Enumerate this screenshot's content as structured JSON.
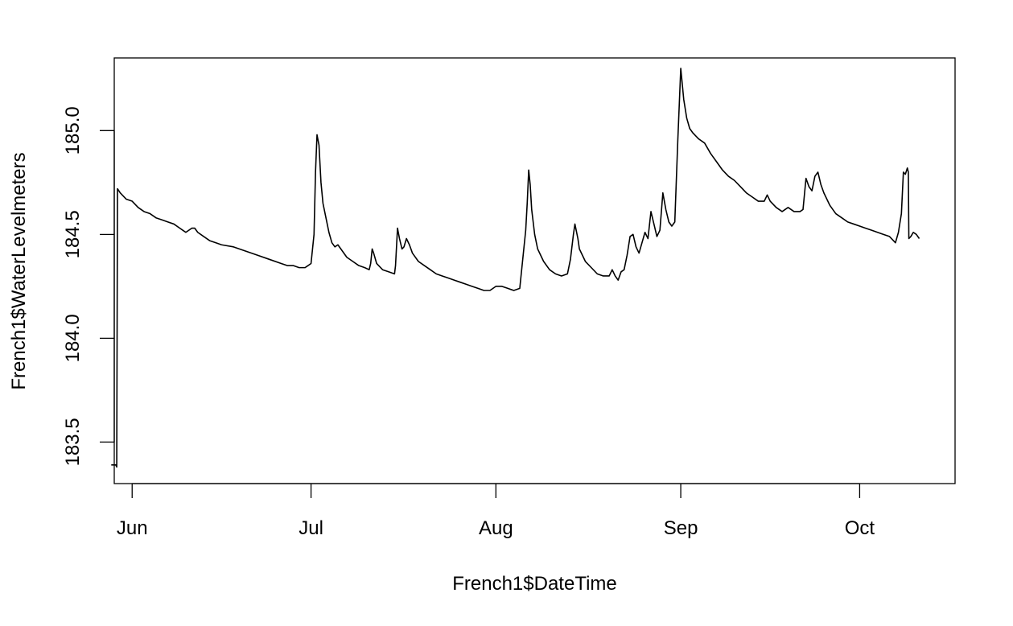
{
  "chart_data": {
    "type": "line",
    "title": "",
    "xlabel": "French1$DateTime",
    "ylabel": "French1$WaterLevelmeters",
    "xlim": [
      "2015-05-29",
      "2015-10-17"
    ],
    "ylim": [
      183.3,
      185.35
    ],
    "x_ticks": [
      "2015-06-01",
      "2015-07-01",
      "2015-08-01",
      "2015-09-01",
      "2015-10-01"
    ],
    "x_tick_labels": [
      "Jun",
      "Jul",
      "Aug",
      "Sep",
      "Oct"
    ],
    "y_ticks": [
      183.5,
      184.0,
      184.5,
      185.0
    ],
    "y_tick_labels": [
      "183.5",
      "184.0",
      "184.5",
      "185.0"
    ],
    "grid": false,
    "series": [
      {
        "color": "#000000",
        "points": [
          [
            "2015-05-28T12:00",
            183.39
          ],
          [
            "2015-05-29T06:00",
            183.39
          ],
          [
            "2015-05-29T10:00",
            183.38
          ],
          [
            "2015-05-29T13:00",
            184.72
          ],
          [
            "2015-05-30",
            184.7
          ],
          [
            "2015-05-31",
            184.67
          ],
          [
            "2015-06-01",
            184.66
          ],
          [
            "2015-06-02",
            184.63
          ],
          [
            "2015-06-03",
            184.61
          ],
          [
            "2015-06-04",
            184.6
          ],
          [
            "2015-06-05",
            184.58
          ],
          [
            "2015-06-06",
            184.57
          ],
          [
            "2015-06-07",
            184.56
          ],
          [
            "2015-06-08",
            184.55
          ],
          [
            "2015-06-09",
            184.53
          ],
          [
            "2015-06-09T12:00",
            184.52
          ],
          [
            "2015-06-10",
            184.51
          ],
          [
            "2015-06-11",
            184.53
          ],
          [
            "2015-06-11T12:00",
            184.53
          ],
          [
            "2015-06-12",
            184.51
          ],
          [
            "2015-06-13",
            184.49
          ],
          [
            "2015-06-14",
            184.47
          ],
          [
            "2015-06-15",
            184.46
          ],
          [
            "2015-06-16",
            184.45
          ],
          [
            "2015-06-18",
            184.44
          ],
          [
            "2015-06-20",
            184.42
          ],
          [
            "2015-06-22",
            184.4
          ],
          [
            "2015-06-24",
            184.38
          ],
          [
            "2015-06-26",
            184.36
          ],
          [
            "2015-06-27",
            184.35
          ],
          [
            "2015-06-28",
            184.35
          ],
          [
            "2015-06-29",
            184.34
          ],
          [
            "2015-06-30",
            184.34
          ],
          [
            "2015-07-01",
            184.36
          ],
          [
            "2015-07-01T12:00",
            184.5
          ],
          [
            "2015-07-01T18:00",
            184.8
          ],
          [
            "2015-07-02",
            184.98
          ],
          [
            "2015-07-02T08:00",
            184.93
          ],
          [
            "2015-07-02T16:00",
            184.75
          ],
          [
            "2015-07-03",
            184.65
          ],
          [
            "2015-07-03T12:00",
            184.58
          ],
          [
            "2015-07-04",
            184.51
          ],
          [
            "2015-07-04T12:00",
            184.46
          ],
          [
            "2015-07-05",
            184.44
          ],
          [
            "2015-07-05T12:00",
            184.45
          ],
          [
            "2015-07-06",
            184.43
          ],
          [
            "2015-07-07",
            184.39
          ],
          [
            "2015-07-08",
            184.37
          ],
          [
            "2015-07-09",
            184.35
          ],
          [
            "2015-07-10",
            184.34
          ],
          [
            "2015-07-10T18:00",
            184.33
          ],
          [
            "2015-07-11",
            184.36
          ],
          [
            "2015-07-11T06:00",
            184.43
          ],
          [
            "2015-07-11T12:00",
            184.41
          ],
          [
            "2015-07-12",
            184.36
          ],
          [
            "2015-07-13",
            184.33
          ],
          [
            "2015-07-14",
            184.32
          ],
          [
            "2015-07-15",
            184.31
          ],
          [
            "2015-07-15T04:00",
            184.35
          ],
          [
            "2015-07-15T12:00",
            184.53
          ],
          [
            "2015-07-15T20:00",
            184.48
          ],
          [
            "2015-07-16T06:00",
            184.43
          ],
          [
            "2015-07-16T14:00",
            184.44
          ],
          [
            "2015-07-17",
            184.48
          ],
          [
            "2015-07-17T12:00",
            184.45
          ],
          [
            "2015-07-18",
            184.41
          ],
          [
            "2015-07-19",
            184.37
          ],
          [
            "2015-07-20",
            184.35
          ],
          [
            "2015-07-21",
            184.33
          ],
          [
            "2015-07-22",
            184.31
          ],
          [
            "2015-07-23",
            184.3
          ],
          [
            "2015-07-24",
            184.29
          ],
          [
            "2015-07-25",
            184.28
          ],
          [
            "2015-07-26",
            184.27
          ],
          [
            "2015-07-27",
            184.26
          ],
          [
            "2015-07-28",
            184.25
          ],
          [
            "2015-07-29",
            184.24
          ],
          [
            "2015-07-30",
            184.23
          ],
          [
            "2015-07-31",
            184.23
          ],
          [
            "2015-08-01",
            184.25
          ],
          [
            "2015-08-02",
            184.25
          ],
          [
            "2015-08-03",
            184.24
          ],
          [
            "2015-08-04",
            184.23
          ],
          [
            "2015-08-05",
            184.24
          ],
          [
            "2015-08-05T12:00",
            184.38
          ],
          [
            "2015-08-06",
            184.52
          ],
          [
            "2015-08-06T06:00",
            184.65
          ],
          [
            "2015-08-06T12:00",
            184.81
          ],
          [
            "2015-08-06T18:00",
            184.74
          ],
          [
            "2015-08-07",
            184.62
          ],
          [
            "2015-08-07T12:00",
            184.5
          ],
          [
            "2015-08-08",
            184.43
          ],
          [
            "2015-08-09",
            184.37
          ],
          [
            "2015-08-10",
            184.33
          ],
          [
            "2015-08-11",
            184.31
          ],
          [
            "2015-08-12",
            184.3
          ],
          [
            "2015-08-13",
            184.31
          ],
          [
            "2015-08-13T12:00",
            184.38
          ],
          [
            "2015-08-14",
            184.5
          ],
          [
            "2015-08-14T06:00",
            184.55
          ],
          [
            "2015-08-14T18:00",
            184.48
          ],
          [
            "2015-08-15",
            184.43
          ],
          [
            "2015-08-16",
            184.37
          ],
          [
            "2015-08-17",
            184.34
          ],
          [
            "2015-08-18",
            184.31
          ],
          [
            "2015-08-19",
            184.3
          ],
          [
            "2015-08-20",
            184.3
          ],
          [
            "2015-08-20T12:00",
            184.33
          ],
          [
            "2015-08-21",
            184.3
          ],
          [
            "2015-08-21T12:00",
            184.28
          ],
          [
            "2015-08-22",
            184.32
          ],
          [
            "2015-08-22T12:00",
            184.33
          ],
          [
            "2015-08-23",
            184.4
          ],
          [
            "2015-08-23T12:00",
            184.49
          ],
          [
            "2015-08-24",
            184.5
          ],
          [
            "2015-08-24T12:00",
            184.44
          ],
          [
            "2015-08-25",
            184.41
          ],
          [
            "2015-08-25T12:00",
            184.46
          ],
          [
            "2015-08-26",
            184.51
          ],
          [
            "2015-08-26T12:00",
            184.48
          ],
          [
            "2015-08-27",
            184.61
          ],
          [
            "2015-08-27T12:00",
            184.55
          ],
          [
            "2015-08-28",
            184.49
          ],
          [
            "2015-08-28T12:00",
            184.52
          ],
          [
            "2015-08-29",
            184.7
          ],
          [
            "2015-08-29T12:00",
            184.62
          ],
          [
            "2015-08-30",
            184.56
          ],
          [
            "2015-08-30T12:00",
            184.54
          ],
          [
            "2015-08-31",
            184.56
          ],
          [
            "2015-08-31T12:00",
            184.95
          ],
          [
            "2015-09-01",
            185.3
          ],
          [
            "2015-09-01T12:00",
            185.15
          ],
          [
            "2015-09-02",
            185.06
          ],
          [
            "2015-09-02T12:00",
            185.01
          ],
          [
            "2015-09-03",
            184.99
          ],
          [
            "2015-09-04",
            184.96
          ],
          [
            "2015-09-05",
            184.94
          ],
          [
            "2015-09-06",
            184.89
          ],
          [
            "2015-09-07",
            184.85
          ],
          [
            "2015-09-08",
            184.81
          ],
          [
            "2015-09-09",
            184.78
          ],
          [
            "2015-09-10",
            184.76
          ],
          [
            "2015-09-11",
            184.73
          ],
          [
            "2015-09-12",
            184.7
          ],
          [
            "2015-09-13",
            184.68
          ],
          [
            "2015-09-14",
            184.66
          ],
          [
            "2015-09-15",
            184.66
          ],
          [
            "2015-09-15T12:00",
            184.69
          ],
          [
            "2015-09-16",
            184.66
          ],
          [
            "2015-09-17",
            184.63
          ],
          [
            "2015-09-18",
            184.61
          ],
          [
            "2015-09-19",
            184.63
          ],
          [
            "2015-09-20",
            184.61
          ],
          [
            "2015-09-21",
            184.61
          ],
          [
            "2015-09-21T12:00",
            184.62
          ],
          [
            "2015-09-22",
            184.77
          ],
          [
            "2015-09-22T12:00",
            184.73
          ],
          [
            "2015-09-23",
            184.71
          ],
          [
            "2015-09-23T12:00",
            184.78
          ],
          [
            "2015-09-24",
            184.8
          ],
          [
            "2015-09-24T12:00",
            184.74
          ],
          [
            "2015-09-25",
            184.7
          ],
          [
            "2015-09-26",
            184.64
          ],
          [
            "2015-09-27",
            184.6
          ],
          [
            "2015-09-28",
            184.58
          ],
          [
            "2015-09-29",
            184.56
          ],
          [
            "2015-09-30",
            184.55
          ],
          [
            "2015-10-01",
            184.54
          ],
          [
            "2015-10-02",
            184.53
          ],
          [
            "2015-10-03",
            184.52
          ],
          [
            "2015-10-04",
            184.51
          ],
          [
            "2015-10-05",
            184.5
          ],
          [
            "2015-10-06",
            184.49
          ],
          [
            "2015-10-07",
            184.46
          ],
          [
            "2015-10-07T12:00",
            184.51
          ],
          [
            "2015-10-08",
            184.6
          ],
          [
            "2015-10-08T08:00",
            184.8
          ],
          [
            "2015-10-08T16:00",
            184.79
          ],
          [
            "2015-10-09",
            184.82
          ],
          [
            "2015-10-09T04:00",
            184.8
          ],
          [
            "2015-10-09T06:00",
            184.48
          ],
          [
            "2015-10-09T14:00",
            184.49
          ],
          [
            "2015-10-10",
            184.51
          ],
          [
            "2015-10-10T12:00",
            184.5
          ],
          [
            "2015-10-11",
            184.48
          ]
        ]
      }
    ]
  }
}
